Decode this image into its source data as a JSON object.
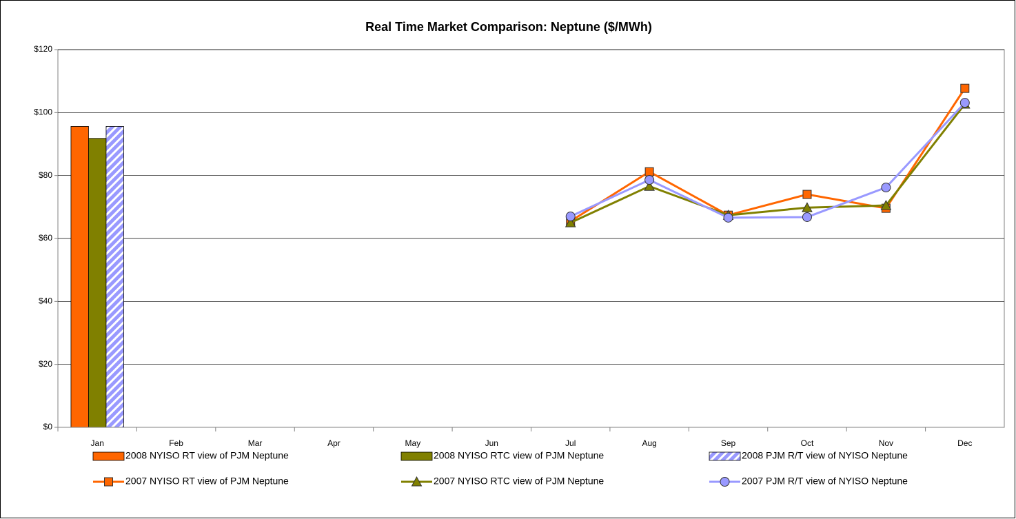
{
  "chart_data": {
    "type": "combo",
    "title": "Real Time Market Comparison: Neptune ($/MWh)",
    "categories": [
      "Jan",
      "Feb",
      "Mar",
      "Apr",
      "May",
      "Jun",
      "Jul",
      "Aug",
      "Sep",
      "Oct",
      "Nov",
      "Dec"
    ],
    "ylim": [
      0,
      120
    ],
    "yticks": [
      {
        "value": 0,
        "label": "$0"
      },
      {
        "value": 20,
        "label": "$20"
      },
      {
        "value": 40,
        "label": "$40"
      },
      {
        "value": 60,
        "label": "$60"
      },
      {
        "value": 80,
        "label": "$80"
      },
      {
        "value": 100,
        "label": "$100"
      },
      {
        "value": 120,
        "label": "$120"
      }
    ],
    "grid": true,
    "legend": "bottom",
    "series": [
      {
        "name": "2008 NYISO RT view of PJM Neptune",
        "type": "bar",
        "color": "#ff6600",
        "values": [
          95.6,
          null,
          null,
          null,
          null,
          null,
          null,
          null,
          null,
          null,
          null,
          null
        ]
      },
      {
        "name": "2008 NYISO RTC view of PJM Neptune",
        "type": "bar",
        "color": "#808000",
        "values": [
          91.8,
          null,
          null,
          null,
          null,
          null,
          null,
          null,
          null,
          null,
          null,
          null
        ]
      },
      {
        "name": "2008 PJM R/T view of NYISO Neptune",
        "type": "bar",
        "color": "#9999ff",
        "hatch": true,
        "values": [
          95.6,
          null,
          null,
          null,
          null,
          null,
          null,
          null,
          null,
          null,
          null,
          null
        ]
      },
      {
        "name": "2007 NYISO RT view of PJM Neptune",
        "type": "line",
        "marker": "square",
        "color": "#ff6600",
        "values": [
          null,
          null,
          null,
          null,
          null,
          null,
          65.5,
          81.2,
          67.4,
          74.0,
          69.6,
          107.7
        ]
      },
      {
        "name": "2007 NYISO RTC view of PJM Neptune",
        "type": "line",
        "marker": "triangle",
        "color": "#808000",
        "values": [
          null,
          null,
          null,
          null,
          null,
          null,
          65.0,
          76.6,
          67.4,
          69.8,
          70.5,
          102.7
        ]
      },
      {
        "name": "2007 PJM R/T view of NYISO Neptune",
        "type": "line",
        "marker": "circle",
        "color": "#9999ff",
        "values": [
          null,
          null,
          null,
          null,
          null,
          null,
          67.0,
          78.6,
          66.6,
          66.8,
          76.2,
          103.1
        ]
      }
    ]
  }
}
